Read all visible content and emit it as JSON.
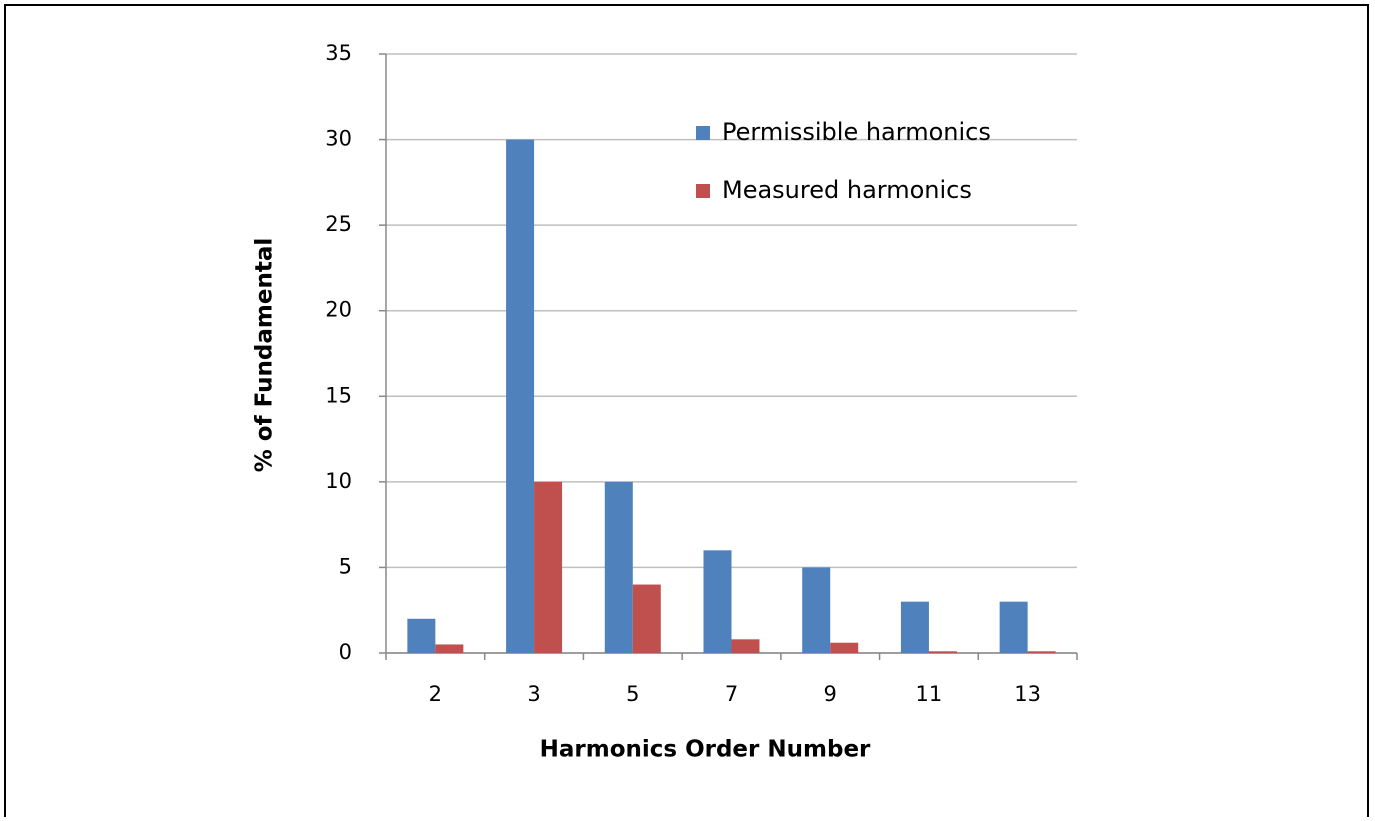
{
  "chart_data": {
    "type": "bar",
    "x_label": "Harmonics Order Number",
    "y_label": "% of Fundamental",
    "categories": [
      "2",
      "3",
      "5",
      "7",
      "9",
      "11",
      "13"
    ],
    "series": [
      {
        "name": "Permissible harmonics",
        "color": "#4f81bd",
        "values": [
          2,
          30,
          10,
          6,
          5,
          3,
          3
        ]
      },
      {
        "name": "Measured harmonics",
        "color": "#c0504d",
        "values": [
          0.5,
          10,
          4,
          0.8,
          0.6,
          0.1,
          0.1
        ]
      }
    ],
    "ylim": [
      0,
      35
    ],
    "yticks": [
      0,
      5,
      10,
      15,
      20,
      25,
      30,
      35
    ],
    "grid": true,
    "legend": "upper right"
  }
}
